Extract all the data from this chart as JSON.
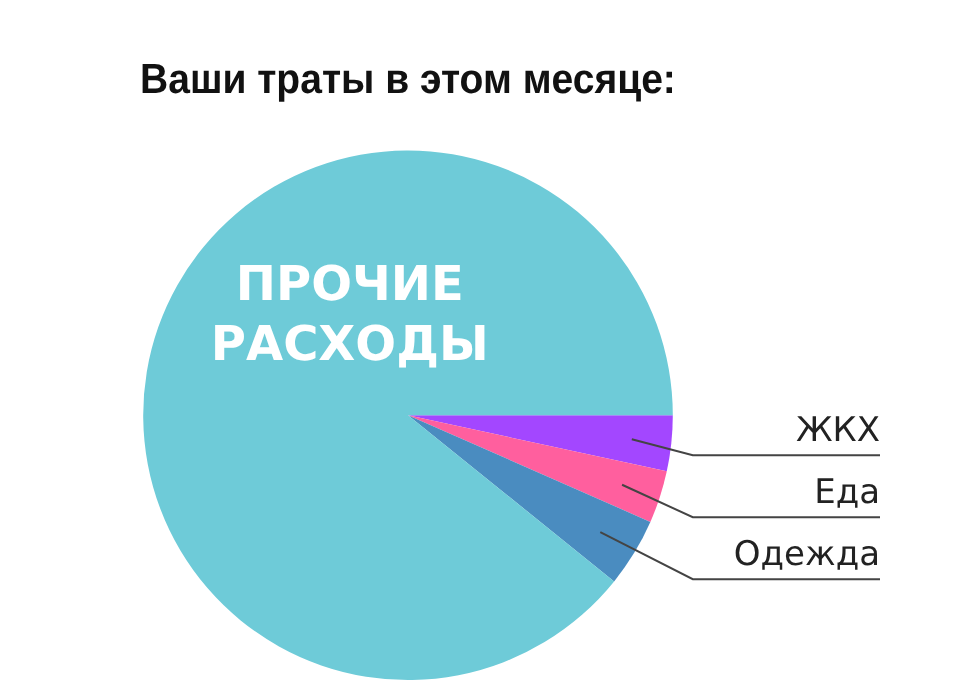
{
  "chart_data": {
    "type": "pie",
    "title": "Ваши траты в этом месяце:",
    "categories": [
      "ЖКХ",
      "Еда",
      "Одежда",
      "ПРОЧИЕ РАСХОДЫ"
    ],
    "values": [
      3.4,
      3.2,
      4.2,
      89.2
    ],
    "colors": [
      "#a347ff",
      "#ff5f9e",
      "#4a8cc0",
      "#6ecbd8"
    ],
    "legend": false
  }
}
